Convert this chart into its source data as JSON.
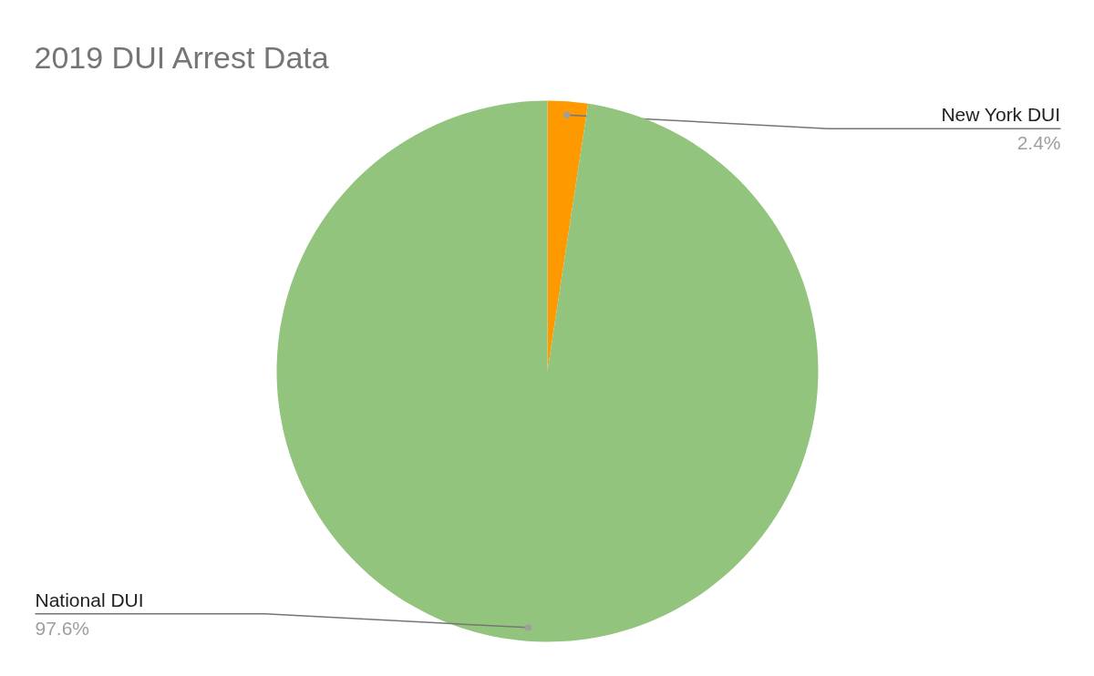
{
  "chart_data": {
    "type": "pie",
    "title": "2019 DUI Arrest Data",
    "categories": [
      "New York DUI",
      "National DUI"
    ],
    "values": [
      2.4,
      97.6
    ],
    "colors": [
      "#ff9900",
      "#93c47d"
    ],
    "value_labels": [
      "2.4%",
      "97.6%"
    ]
  }
}
